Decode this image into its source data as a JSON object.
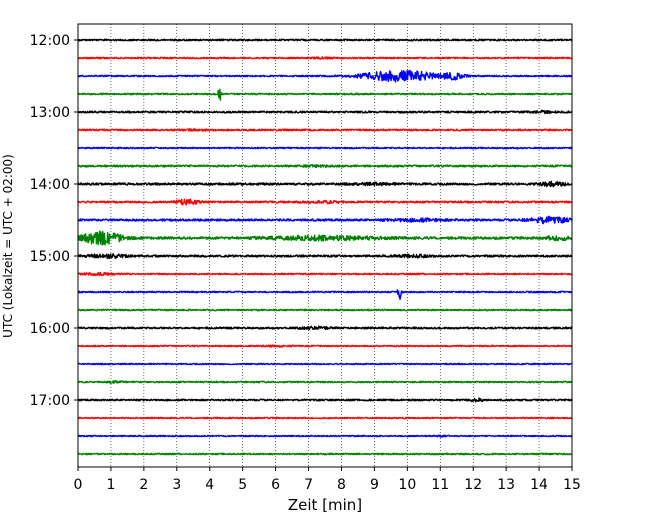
{
  "chart_data": {
    "type": "line",
    "title": "",
    "xlabel": "Zeit  [min]",
    "ylabel": "UTC (Lokalzeit = UTC + 02:00)",
    "xlim": [
      0,
      15
    ],
    "x_ticks": [
      "0",
      "1",
      "2",
      "3",
      "4",
      "5",
      "6",
      "7",
      "8",
      "9",
      "10",
      "11",
      "12",
      "13",
      "14",
      "15"
    ],
    "y_ticks": [
      "12:00",
      "13:00",
      "14:00",
      "15:00",
      "16:00",
      "17:00"
    ],
    "grid": "vertical dotted at each minute",
    "trace_interval_min": 15,
    "color_cycle": [
      "#000000",
      "#ff0000",
      "#0000ff",
      "#008000"
    ],
    "traces": [
      {
        "start": "12:00",
        "color": "#000000",
        "amp": 0.9,
        "events": []
      },
      {
        "start": "12:15",
        "color": "#ff0000",
        "amp": 0.8,
        "events": [
          {
            "t": 7.4,
            "a": 0.6,
            "w": 0.3
          }
        ]
      },
      {
        "start": "12:30",
        "color": "#0000ff",
        "amp": 0.8,
        "events": [
          {
            "t": 9.8,
            "a": 6.0,
            "w": 1.1
          },
          {
            "t": 11.4,
            "a": 3.0,
            "w": 0.3
          }
        ]
      },
      {
        "start": "12:45",
        "color": "#008000",
        "amp": 0.8,
        "events": [
          {
            "t": 4.3,
            "a": 10.0,
            "w": 0.05
          }
        ]
      },
      {
        "start": "13:00",
        "color": "#000000",
        "amp": 1.0,
        "events": [
          {
            "t": 14.1,
            "a": 0.8,
            "w": 0.4
          }
        ]
      },
      {
        "start": "13:15",
        "color": "#ff0000",
        "amp": 0.9,
        "events": [
          {
            "t": 3.6,
            "a": 0.5,
            "w": 0.5
          }
        ]
      },
      {
        "start": "13:30",
        "color": "#0000ff",
        "amp": 0.8,
        "events": []
      },
      {
        "start": "13:45",
        "color": "#008000",
        "amp": 1.0,
        "events": [
          {
            "t": 7.2,
            "a": 0.6,
            "w": 0.4
          }
        ]
      },
      {
        "start": "14:00",
        "color": "#000000",
        "amp": 1.2,
        "events": [
          {
            "t": 14.4,
            "a": 2.0,
            "w": 0.4
          },
          {
            "t": 9.0,
            "a": 0.8,
            "w": 0.6
          }
        ]
      },
      {
        "start": "14:15",
        "color": "#ff0000",
        "amp": 1.0,
        "events": [
          {
            "t": 3.3,
            "a": 3.0,
            "w": 0.3
          },
          {
            "t": 7.5,
            "a": 1.0,
            "w": 0.5
          }
        ]
      },
      {
        "start": "14:30",
        "color": "#0000ff",
        "amp": 1.2,
        "events": [
          {
            "t": 14.3,
            "a": 3.0,
            "w": 0.6
          },
          {
            "t": 10.3,
            "a": 1.2,
            "w": 0.8
          }
        ]
      },
      {
        "start": "14:45",
        "color": "#008000",
        "amp": 1.3,
        "events": [
          {
            "t": 0.7,
            "a": 6.5,
            "w": 0.6
          },
          {
            "t": 7.5,
            "a": 2.0,
            "w": 1.6
          },
          {
            "t": 14.6,
            "a": 1.8,
            "w": 0.4
          }
        ]
      },
      {
        "start": "15:00",
        "color": "#000000",
        "amp": 1.1,
        "events": [
          {
            "t": 0.9,
            "a": 1.6,
            "w": 0.6
          },
          {
            "t": 10.2,
            "a": 1.0,
            "w": 0.5
          }
        ]
      },
      {
        "start": "15:15",
        "color": "#ff0000",
        "amp": 0.8,
        "events": [
          {
            "t": 0.6,
            "a": 1.0,
            "w": 0.5
          }
        ]
      },
      {
        "start": "15:30",
        "color": "#0000ff",
        "amp": 0.8,
        "events": [
          {
            "t": 9.75,
            "a": 11.0,
            "w": 0.05
          }
        ]
      },
      {
        "start": "15:45",
        "color": "#008000",
        "amp": 0.8,
        "events": []
      },
      {
        "start": "16:00",
        "color": "#000000",
        "amp": 1.0,
        "events": [
          {
            "t": 7.2,
            "a": 1.2,
            "w": 0.4
          }
        ]
      },
      {
        "start": "16:15",
        "color": "#ff0000",
        "amp": 0.7,
        "events": [
          {
            "t": 6.0,
            "a": 0.6,
            "w": 0.5
          }
        ]
      },
      {
        "start": "16:30",
        "color": "#0000ff",
        "amp": 0.7,
        "events": []
      },
      {
        "start": "16:45",
        "color": "#008000",
        "amp": 0.8,
        "events": [
          {
            "t": 1.1,
            "a": 0.8,
            "w": 0.3
          }
        ]
      },
      {
        "start": "17:00",
        "color": "#000000",
        "amp": 0.9,
        "events": [
          {
            "t": 12.1,
            "a": 1.6,
            "w": 0.2
          }
        ]
      },
      {
        "start": "17:15",
        "color": "#ff0000",
        "amp": 0.7,
        "events": []
      },
      {
        "start": "17:30",
        "color": "#0000ff",
        "amp": 0.7,
        "events": [
          {
            "t": 11.0,
            "a": 1.0,
            "w": 0.15
          }
        ]
      },
      {
        "start": "17:45",
        "color": "#008000",
        "amp": 0.8,
        "events": []
      }
    ]
  }
}
